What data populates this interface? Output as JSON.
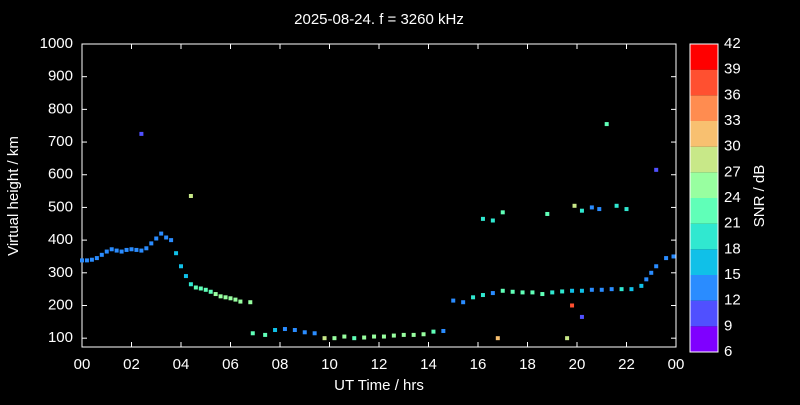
{
  "chart_data": {
    "type": "scatter",
    "title": "2025-08-24. f = 3260 kHz",
    "x_label": "UT Time / hrs",
    "y_label": "Virtual height / km",
    "colorbar_label": "SNR / dB",
    "xlim": [
      0,
      24
    ],
    "xticks": [
      {
        "value": 0,
        "label": "00"
      },
      {
        "value": 2,
        "label": "02"
      },
      {
        "value": 4,
        "label": "04"
      },
      {
        "value": 6,
        "label": "06"
      },
      {
        "value": 8,
        "label": "08"
      },
      10,
      12,
      14,
      16,
      18,
      20,
      22,
      {
        "value": 24,
        "label": "00"
      }
    ],
    "ylim": [
      73,
      1000
    ],
    "yticks": [
      100,
      200,
      300,
      400,
      500,
      600,
      700,
      800,
      900,
      1000
    ],
    "clim": [
      6,
      42
    ],
    "cticks": [
      6,
      9,
      12,
      15,
      18,
      21,
      24,
      27,
      30,
      33,
      36,
      39,
      42
    ],
    "colors": [
      "#7f00ff",
      "#5050ff",
      "#2a8cff",
      "#10c0e8",
      "#30e8d0",
      "#60ffb8",
      "#98ffa0",
      "#c8e888",
      "#f8c070",
      "#ff8c50",
      "#ff5030",
      "#ff0000"
    ],
    "series": [
      {
        "x": [
          0.0,
          0.2,
          0.4,
          0.6,
          0.8,
          1.0,
          1.2,
          1.4,
          1.6,
          1.8,
          2.0,
          2.2,
          2.4,
          2.6,
          2.8,
          3.0,
          3.2,
          3.4,
          3.6,
          3.8,
          4.0,
          4.2,
          4.4,
          4.6,
          4.8,
          5.0,
          5.2,
          5.4,
          5.6,
          5.8,
          6.0,
          6.2,
          6.4,
          6.8,
          2.4,
          4.4,
          6.9,
          7.4,
          7.8,
          8.2,
          8.6,
          9.0,
          9.4,
          9.8,
          10.2,
          10.6,
          11.0,
          11.4,
          11.8,
          12.2,
          12.6,
          13.0,
          13.4,
          13.8,
          14.2,
          14.6,
          15.0,
          15.4,
          15.8,
          16.2,
          16.6,
          17.0,
          17.4,
          17.8,
          18.2,
          18.6,
          19.0,
          19.4,
          19.8,
          20.2,
          20.6,
          21.0,
          21.4,
          21.8,
          22.2,
          22.6,
          22.8,
          23.0,
          23.2,
          23.6,
          23.9,
          16.2,
          16.6,
          17.0,
          18.8,
          19.9,
          20.2,
          20.6,
          20.9,
          21.2,
          21.6,
          22.0,
          23.2,
          19.6,
          19.8,
          20.2,
          16.8
        ],
        "y": [
          338,
          338,
          340,
          345,
          355,
          365,
          372,
          368,
          365,
          370,
          372,
          370,
          368,
          375,
          390,
          405,
          420,
          408,
          400,
          360,
          320,
          290,
          265,
          255,
          252,
          248,
          242,
          235,
          228,
          225,
          222,
          218,
          212,
          210,
          725,
          535,
          115,
          110,
          125,
          128,
          125,
          118,
          115,
          100,
          100,
          105,
          100,
          102,
          105,
          105,
          108,
          110,
          110,
          112,
          120,
          122,
          215,
          210,
          225,
          232,
          238,
          245,
          242,
          240,
          240,
          235,
          240,
          243,
          245,
          245,
          248,
          248,
          250,
          250,
          250,
          260,
          280,
          300,
          320,
          345,
          350,
          465,
          460,
          485,
          480,
          505,
          490,
          500,
          495,
          755,
          505,
          495,
          615,
          100,
          200,
          165,
          100
        ],
        "snr": [
          13,
          13,
          13,
          13,
          14,
          13,
          14,
          13,
          13,
          14,
          13,
          13,
          13,
          14,
          13,
          12,
          13,
          14,
          13,
          15,
          15,
          16,
          20,
          22,
          22,
          23,
          23,
          24,
          24,
          24,
          25,
          25,
          25,
          25,
          10,
          28,
          22,
          22,
          15,
          14,
          13,
          14,
          13,
          28,
          24,
          24,
          23,
          24,
          24,
          24,
          25,
          24,
          24,
          24,
          22,
          13,
          13,
          13,
          20,
          20,
          13,
          21,
          22,
          22,
          22,
          23,
          20,
          20,
          15,
          16,
          14,
          14,
          14,
          20,
          17,
          16,
          14,
          14,
          14,
          14,
          14,
          20,
          20,
          23,
          22,
          28,
          20,
          13,
          14,
          21,
          20,
          18,
          10,
          28,
          36,
          10,
          30
        ]
      }
    ]
  }
}
